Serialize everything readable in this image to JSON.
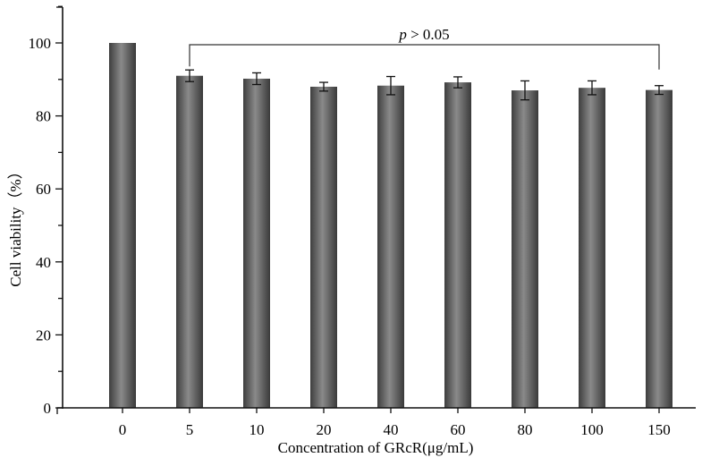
{
  "chart_data": {
    "type": "bar",
    "title": "",
    "xlabel": "Concentration of GRcR(μg/mL)",
    "ylabel": "Cell viability（%）",
    "categories": [
      "0",
      "5",
      "10",
      "20",
      "40",
      "60",
      "80",
      "100",
      "150"
    ],
    "values": [
      100,
      91.0,
      90.2,
      88.0,
      88.3,
      89.2,
      87.0,
      87.7,
      87.1
    ],
    "errors": [
      0,
      1.6,
      1.6,
      1.2,
      2.5,
      1.5,
      2.6,
      1.9,
      1.2
    ],
    "ylim": [
      0,
      110
    ],
    "yticks": [
      0,
      20,
      40,
      60,
      80,
      100
    ],
    "grid": false,
    "legend": null,
    "annotations": [
      {
        "text": "p > 0.05",
        "type": "significance-bracket",
        "from": "5",
        "to": "150"
      }
    ],
    "bar_color": "#6e6e6e"
  },
  "annotation": {
    "p_italic": "p",
    "rest": " > 0.05"
  }
}
